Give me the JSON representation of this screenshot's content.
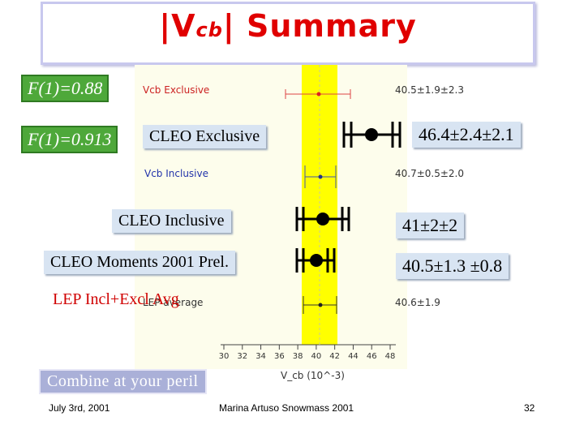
{
  "title": {
    "prefix": "|V",
    "sub": "cb",
    "suffix": "| Summary"
  },
  "labels": {
    "f1_a": "F(1)=0.88",
    "f1_b": "F(1)=0.913",
    "cleo_exclusive": "CLEO Exclusive",
    "cleo_inclusive": "CLEO Inclusive",
    "cleo_moments": "CLEO Moments 2001 Prel.",
    "lep_incl_excl": "LEP Incl+Excl Avg",
    "combine": "Combine at your peril"
  },
  "values": {
    "cleo_exclusive": "46.4±2.4±2.1",
    "cleo_inclusive": "41±2±2",
    "cleo_moments": "40.5±1.3 ±0.8"
  },
  "faint_plot": {
    "vcb_exclusive_label": "Vcb Exclusive",
    "vcb_exclusive_value": "40.5±1.9±2.3",
    "vcb_inclusive_label": "Vcb Inclusive",
    "vcb_inclusive_value": "40.7±0.5±2.0",
    "lep_average_label": "LEP average",
    "lep_average_value": "40.6±1.9",
    "axis_label": "V_cb (10^-3)",
    "ticks": [
      "30",
      "32",
      "34",
      "36",
      "38",
      "40",
      "42",
      "44",
      "46",
      "48"
    ]
  },
  "footer": {
    "date": "July 3rd, 2001",
    "author": "Marina Artuso Snowmass 2001",
    "page": "32"
  },
  "colors": {
    "title": "#e00000",
    "band": "#ffff00",
    "green_label": "#4ea83a",
    "blue_label": "#d8e4f2",
    "combine": "#aab0d8"
  }
}
